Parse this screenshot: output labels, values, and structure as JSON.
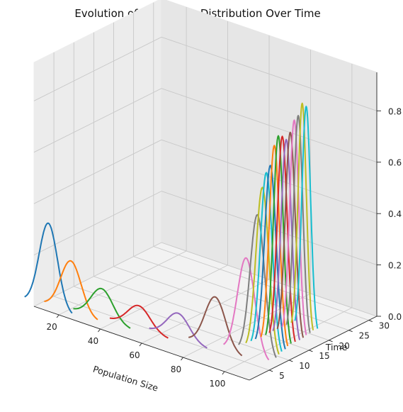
{
  "chart_data": {
    "type": "line",
    "projection": "3d",
    "title": "Evolution of Population Distribution Over Time",
    "xlabel": "Population Size",
    "ylabel": "Time",
    "zlabel": "",
    "xlim": [
      8,
      112
    ],
    "ylim": [
      0,
      32
    ],
    "zlim": [
      0,
      0.95
    ],
    "xticks": [
      "20",
      "40",
      "60",
      "80",
      "100"
    ],
    "yticks": [
      "5",
      "10",
      "15",
      "20",
      "25",
      "30"
    ],
    "zticks": [
      "0.0",
      "0.2",
      "0.4",
      "0.6",
      "0.8"
    ],
    "grid": true,
    "legend": "none",
    "colors": [
      "#1f77b4",
      "#ff7f0e",
      "#2ca02c",
      "#d62728",
      "#9467bd",
      "#8c564b",
      "#e377c2",
      "#7f7f7f",
      "#bcbd22",
      "#17becf"
    ],
    "series": [
      {
        "t": 1,
        "mean": 13,
        "peak": 0.33
      },
      {
        "t": 2,
        "mean": 22,
        "peak": 0.2
      },
      {
        "t": 3,
        "mean": 35,
        "peak": 0.12
      },
      {
        "t": 4,
        "mean": 51,
        "peak": 0.09
      },
      {
        "t": 5,
        "mean": 68,
        "peak": 0.1
      },
      {
        "t": 6,
        "mean": 84,
        "peak": 0.2
      },
      {
        "t": 7,
        "mean": 97,
        "peak": 0.38
      },
      {
        "t": 8,
        "mean": 100.5,
        "peak": 0.55
      },
      {
        "t": 9,
        "mean": 101,
        "peak": 0.65
      },
      {
        "t": 10,
        "mean": 101,
        "peak": 0.7
      },
      {
        "t": 11,
        "mean": 101,
        "peak": 0.72
      },
      {
        "t": 12,
        "mean": 101,
        "peak": 0.79
      },
      {
        "t": 13,
        "mean": 101,
        "peak": 0.82
      },
      {
        "t": 14,
        "mean": 101,
        "peak": 0.81
      },
      {
        "t": 15,
        "mean": 101,
        "peak": 0.79
      },
      {
        "t": 16,
        "mean": 101,
        "peak": 0.81
      },
      {
        "t": 17,
        "mean": 101,
        "peak": 0.85
      },
      {
        "t": 18,
        "mean": 101,
        "peak": 0.86
      },
      {
        "t": 19,
        "mean": 101,
        "peak": 0.9
      },
      {
        "t": 20,
        "mean": 101,
        "peak": 0.88
      }
    ]
  }
}
